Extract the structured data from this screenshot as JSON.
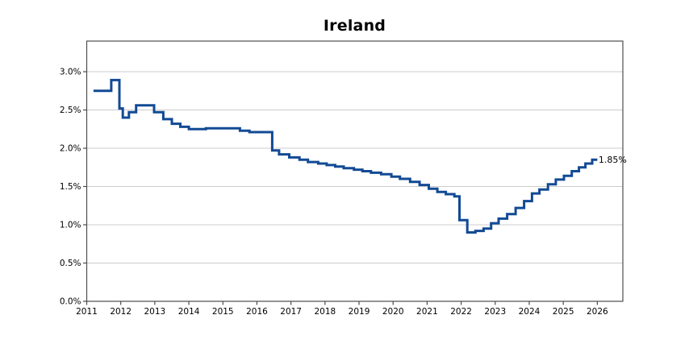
{
  "title": "Ireland",
  "colors": {
    "line": "#124a94",
    "grid": "#cccccc",
    "spine": "#4d4d4d",
    "tick_text": "#000000",
    "background": "#ffffff",
    "annotation_text": "#000000"
  },
  "chart_data": {
    "type": "line",
    "line_style": "step-post",
    "title": "Ireland",
    "xlabel": "",
    "ylabel": "",
    "grid": "horizontal-only",
    "legend": "none",
    "xlim": [
      2011,
      2026.75
    ],
    "ylim": [
      0,
      3.4
    ],
    "x_ticks": [
      {
        "value": 2011,
        "label": "2011"
      },
      {
        "value": 2012,
        "label": "2012"
      },
      {
        "value": 2013,
        "label": "2013"
      },
      {
        "value": 2014,
        "label": "2014"
      },
      {
        "value": 2015,
        "label": "2015"
      },
      {
        "value": 2016,
        "label": "2016"
      },
      {
        "value": 2017,
        "label": "2017"
      },
      {
        "value": 2018,
        "label": "2018"
      },
      {
        "value": 2019,
        "label": "2019"
      },
      {
        "value": 2020,
        "label": "2020"
      },
      {
        "value": 2021,
        "label": "2021"
      },
      {
        "value": 2022,
        "label": "2022"
      },
      {
        "value": 2023,
        "label": "2023"
      },
      {
        "value": 2024,
        "label": "2024"
      },
      {
        "value": 2025,
        "label": "2025"
      },
      {
        "value": 2026,
        "label": "2026"
      }
    ],
    "y_ticks": [
      {
        "value": 0.0,
        "label": "0.0%"
      },
      {
        "value": 0.5,
        "label": "0.5%"
      },
      {
        "value": 1.0,
        "label": "1.0%"
      },
      {
        "value": 1.5,
        "label": "1.5%"
      },
      {
        "value": 2.0,
        "label": "2.0%"
      },
      {
        "value": 2.5,
        "label": "2.5%"
      },
      {
        "value": 3.0,
        "label": "3.0%"
      }
    ],
    "series": [
      {
        "name": "Ireland",
        "unit": "%",
        "points": [
          [
            2011.2,
            2.75
          ],
          [
            2011.72,
            2.89
          ],
          [
            2011.96,
            2.52
          ],
          [
            2012.06,
            2.4
          ],
          [
            2012.24,
            2.47
          ],
          [
            2012.45,
            2.56
          ],
          [
            2012.98,
            2.47
          ],
          [
            2013.25,
            2.38
          ],
          [
            2013.5,
            2.32
          ],
          [
            2013.75,
            2.28
          ],
          [
            2014.0,
            2.25
          ],
          [
            2014.5,
            2.26
          ],
          [
            2015.5,
            2.23
          ],
          [
            2015.78,
            2.21
          ],
          [
            2016.45,
            1.97
          ],
          [
            2016.65,
            1.92
          ],
          [
            2016.95,
            1.88
          ],
          [
            2017.25,
            1.85
          ],
          [
            2017.5,
            1.82
          ],
          [
            2017.8,
            1.8
          ],
          [
            2018.05,
            1.78
          ],
          [
            2018.3,
            1.76
          ],
          [
            2018.55,
            1.74
          ],
          [
            2018.85,
            1.72
          ],
          [
            2019.1,
            1.7
          ],
          [
            2019.35,
            1.68
          ],
          [
            2019.65,
            1.66
          ],
          [
            2019.95,
            1.63
          ],
          [
            2020.2,
            1.6
          ],
          [
            2020.5,
            1.56
          ],
          [
            2020.78,
            1.52
          ],
          [
            2021.05,
            1.47
          ],
          [
            2021.3,
            1.43
          ],
          [
            2021.55,
            1.4
          ],
          [
            2021.8,
            1.37
          ],
          [
            2021.95,
            1.06
          ],
          [
            2022.18,
            0.9
          ],
          [
            2022.42,
            0.92
          ],
          [
            2022.66,
            0.95
          ],
          [
            2022.88,
            1.02
          ],
          [
            2023.1,
            1.08
          ],
          [
            2023.35,
            1.14
          ],
          [
            2023.6,
            1.22
          ],
          [
            2023.85,
            1.31
          ],
          [
            2024.08,
            1.41
          ],
          [
            2024.3,
            1.46
          ],
          [
            2024.55,
            1.53
          ],
          [
            2024.78,
            1.59
          ],
          [
            2025.02,
            1.64
          ],
          [
            2025.25,
            1.7
          ],
          [
            2025.46,
            1.75
          ],
          [
            2025.65,
            1.8
          ],
          [
            2025.85,
            1.85
          ],
          [
            2026.0,
            1.85
          ]
        ]
      }
    ],
    "annotation": {
      "text": "1.85%",
      "x": 2026.0,
      "y": 1.85
    }
  }
}
